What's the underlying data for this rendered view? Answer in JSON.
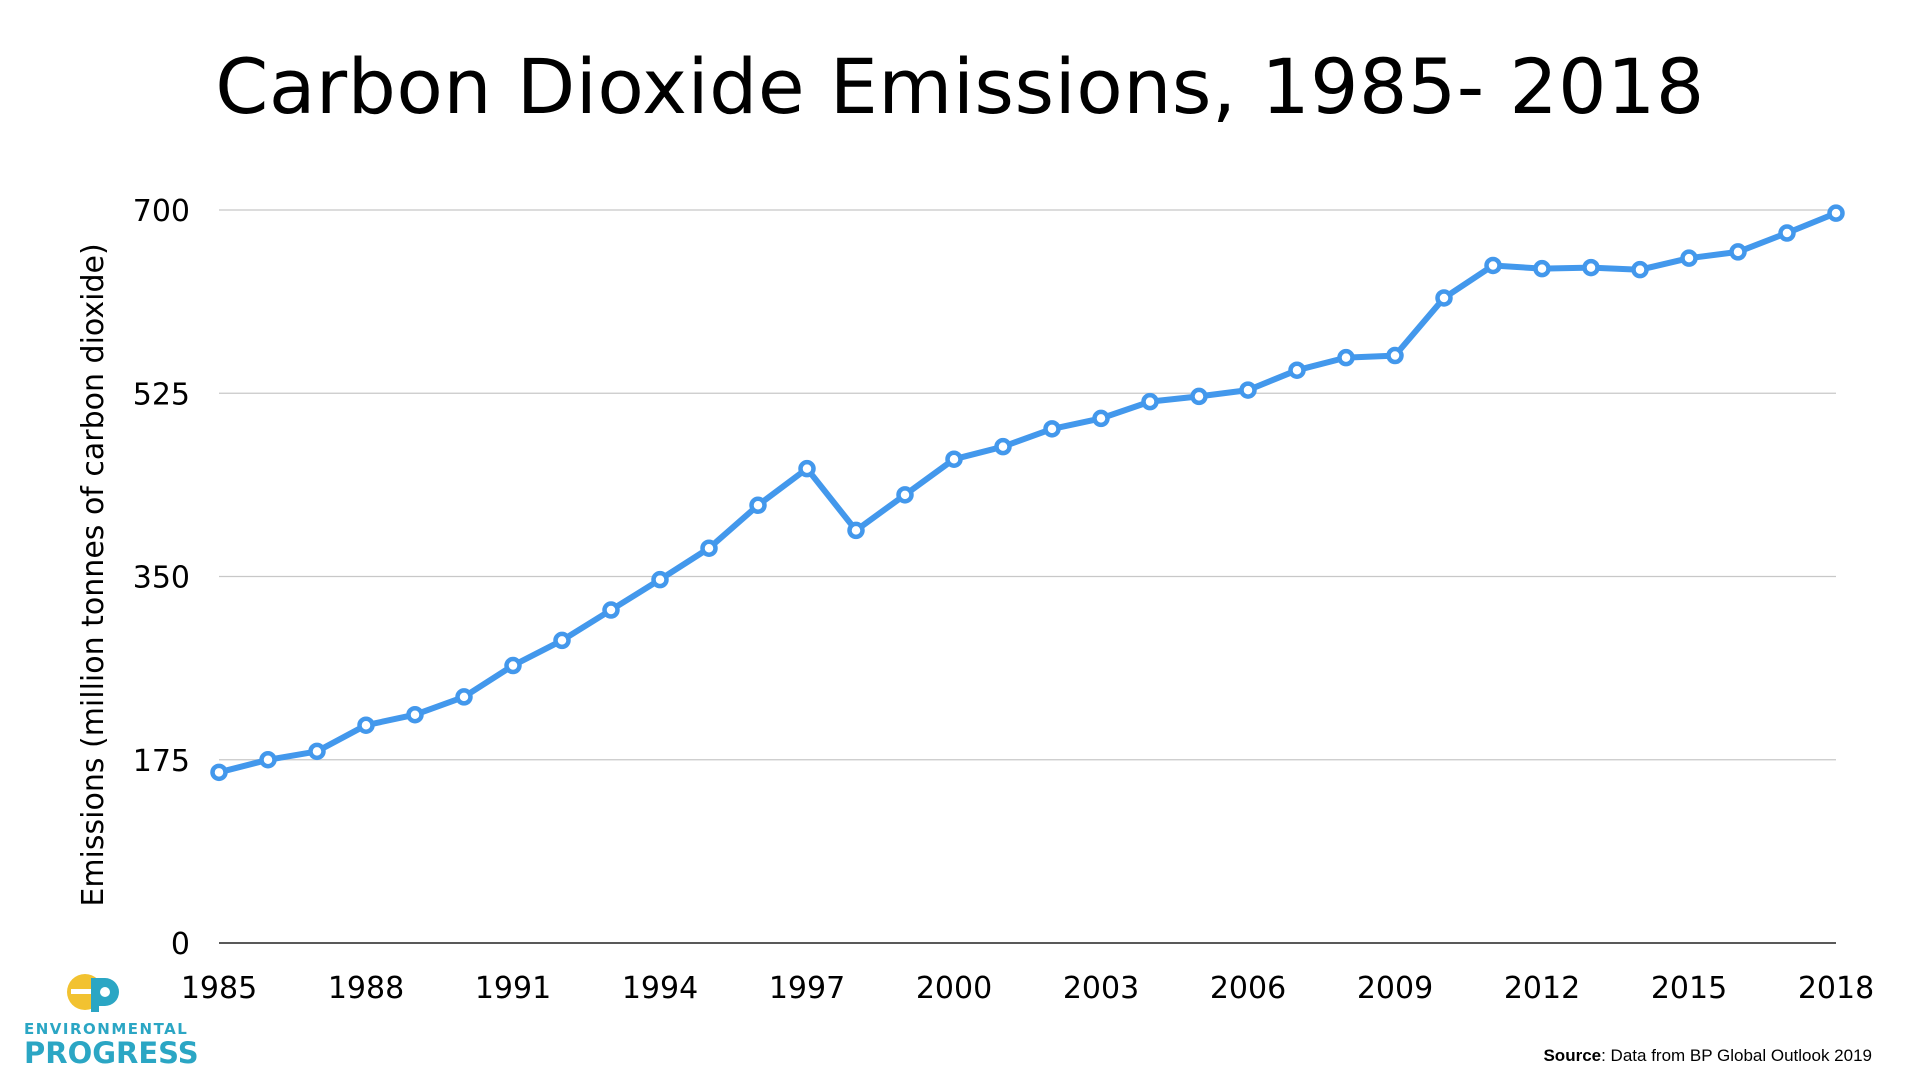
{
  "chart_data": {
    "type": "line",
    "title": "Carbon Dioxide Emissions, 1985- 2018",
    "xlabel": "",
    "ylabel": "Emissions (million tonnes of carbon dioxide)",
    "xlim": [
      1985,
      2018
    ],
    "ylim": [
      0,
      700
    ],
    "y_ticks": [
      0,
      175,
      350,
      525,
      700
    ],
    "x_ticks": [
      1985,
      1988,
      1991,
      1994,
      1997,
      2000,
      2003,
      2006,
      2009,
      2012,
      2015,
      2018
    ],
    "grid": "horizontal",
    "legend": "none",
    "series": [
      {
        "color": "#4398ec",
        "x": [
          1985,
          1986,
          1987,
          1988,
          1989,
          1990,
          1991,
          1992,
          1993,
          1994,
          1995,
          1996,
          1997,
          1998,
          1999,
          2000,
          2001,
          2002,
          2003,
          2004,
          2005,
          2006,
          2007,
          2008,
          2009,
          2010,
          2011,
          2012,
          2013,
          2014,
          2015,
          2016,
          2017,
          2018
        ],
        "y": [
          163,
          175,
          183,
          208,
          218,
          235,
          265,
          289,
          318,
          347,
          377,
          418,
          453,
          394,
          428,
          462,
          474,
          491,
          501,
          517,
          522,
          528,
          547,
          559,
          561,
          616,
          647,
          644,
          645,
          643,
          654,
          660,
          678,
          697
        ]
      }
    ]
  },
  "logo": {
    "line1": "ENVIRONMENTAL",
    "line2": "PROGRESS",
    "colors": {
      "yellow": "#f2c230",
      "blue": "#2ba6c4"
    }
  },
  "source": {
    "label": "Source",
    "text": ": Data from BP Global Outlook 2019"
  }
}
